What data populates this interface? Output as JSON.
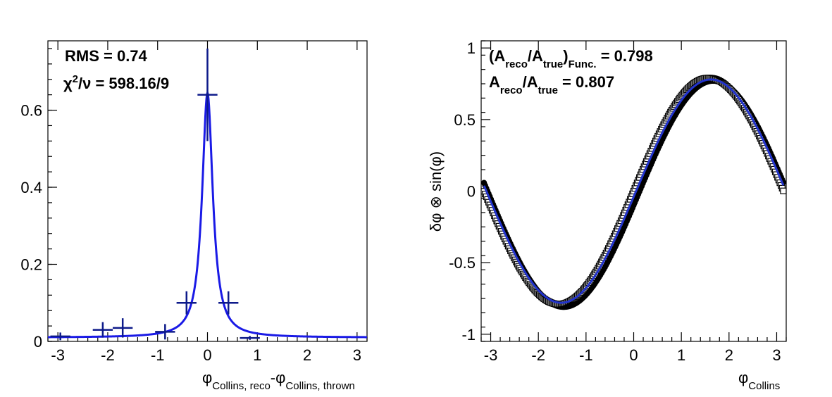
{
  "chart_data": [
    {
      "type": "line",
      "title": "",
      "xlabel": {
        "main1": "φ",
        "sub1": "Collins, reco",
        "main2": "-φ",
        "sub2": "Collins, thrown"
      },
      "ylabel": "",
      "xlim": [
        -3.2,
        3.2
      ],
      "ylim": [
        0,
        0.78
      ],
      "xticks": [
        -3,
        -2,
        -1,
        0,
        1,
        2,
        3
      ],
      "yticks": [
        0,
        0.2,
        0.4,
        0.6
      ],
      "ytick_labels": [
        "0",
        "0.2",
        "0.4",
        "0.6"
      ],
      "annotations": {
        "rms": "RMS = 0.74",
        "chi_prefix": "χ",
        "chi_sup": "2",
        "chi_suffix": "/ν = 598.16/9"
      },
      "points": [
        {
          "x": -2.95,
          "y": 0.013,
          "ex": 0.2,
          "ey": 0.01
        },
        {
          "x": -2.1,
          "y": 0.03,
          "ex": 0.2,
          "ey": 0.02
        },
        {
          "x": -1.7,
          "y": 0.035,
          "ex": 0.2,
          "ey": 0.025
        },
        {
          "x": -0.85,
          "y": 0.025,
          "ex": 0.2,
          "ey": 0.02
        },
        {
          "x": -0.42,
          "y": 0.1,
          "ex": 0.2,
          "ey": 0.03
        },
        {
          "x": 0.0,
          "y": 0.64,
          "ex": 0.2,
          "ey": 0.12
        },
        {
          "x": 0.42,
          "y": 0.1,
          "ex": 0.2,
          "ey": 0.03
        },
        {
          "x": 0.85,
          "y": 0.009,
          "ex": 0.2,
          "ey": 0.005
        }
      ],
      "fit": {
        "type": "lorentzian",
        "amplitude": 0.635,
        "center": 0.0,
        "gamma": 0.13,
        "baseline": 0.01
      },
      "colors": {
        "points": "#0d1a8a",
        "fit": "#1a1ae6"
      }
    },
    {
      "type": "line",
      "title": "",
      "xlabel": {
        "main": "φ",
        "sub": "Collins"
      },
      "ylabel": "δφ ⊗ sin(φ)",
      "xlim": [
        -3.2,
        3.2
      ],
      "ylim": [
        -1.05,
        1.05
      ],
      "xticks": [
        -3,
        -2,
        -1,
        0,
        1,
        2,
        3
      ],
      "yticks": [
        -1,
        -0.5,
        0,
        0.5,
        1
      ],
      "ytick_labels": [
        "-1",
        "-0.5",
        "0",
        "0.5",
        "1"
      ],
      "annotations": {
        "line1_open": "(A",
        "line1_sub1": "reco",
        "line1_mid": "/A",
        "line1_sub2": "true",
        "line1_close": ")",
        "line1_sub3": "Func.",
        "line1_value": " = 0.798",
        "line2_a": "A",
        "line2_sub1": "reco",
        "line2_mid": "/A",
        "line2_sub2": "true",
        "line2_value": " = 0.807"
      },
      "series": [
        {
          "style": "filled-circles",
          "amplitude": 0.79,
          "phase": -0.1
        },
        {
          "style": "open-squares",
          "amplitude": 0.79,
          "phase": 0.0
        },
        {
          "style": "line",
          "amplitude": 0.78,
          "phase": -0.05
        }
      ],
      "colors": {
        "markers": "#000000",
        "fit": "#2233cc"
      }
    }
  ]
}
